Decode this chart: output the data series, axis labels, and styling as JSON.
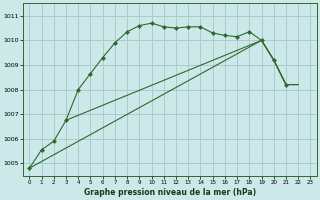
{
  "title": "Graphe pression niveau de la mer (hPa)",
  "background_color": "#cce8e8",
  "grid_color": "#aacccc",
  "line_color": "#2d6a2d",
  "xlim": [
    -0.5,
    23.5
  ],
  "ylim": [
    1004.5,
    1011.5
  ],
  "x_ticks": [
    0,
    1,
    2,
    3,
    4,
    5,
    6,
    7,
    8,
    9,
    10,
    11,
    12,
    13,
    14,
    15,
    16,
    17,
    18,
    19,
    20,
    21,
    22,
    23
  ],
  "y_ticks": [
    1005,
    1006,
    1007,
    1008,
    1009,
    1010,
    1011
  ],
  "series_main_x": [
    0,
    1,
    2,
    3,
    4,
    5,
    6,
    7,
    8,
    9,
    10,
    11,
    12,
    13,
    14,
    15,
    16,
    17,
    18,
    19,
    20,
    21
  ],
  "series_main_y": [
    1004.8,
    1005.55,
    1005.9,
    1006.75,
    1008.0,
    1008.65,
    1009.3,
    1009.9,
    1010.35,
    1010.6,
    1010.7,
    1010.55,
    1010.5,
    1010.55,
    1010.55,
    1010.3,
    1010.2,
    1010.15,
    1010.35,
    1010.0,
    1009.2,
    1008.2
  ],
  "series_line1_x": [
    0,
    19,
    20,
    21,
    22
  ],
  "series_line1_y": [
    1004.8,
    1010.0,
    1009.2,
    1008.2,
    1008.2
  ],
  "series_line2_x": [
    3,
    19,
    20,
    21,
    22
  ],
  "series_line2_y": [
    1006.75,
    1010.0,
    1009.2,
    1008.2,
    1008.2
  ]
}
